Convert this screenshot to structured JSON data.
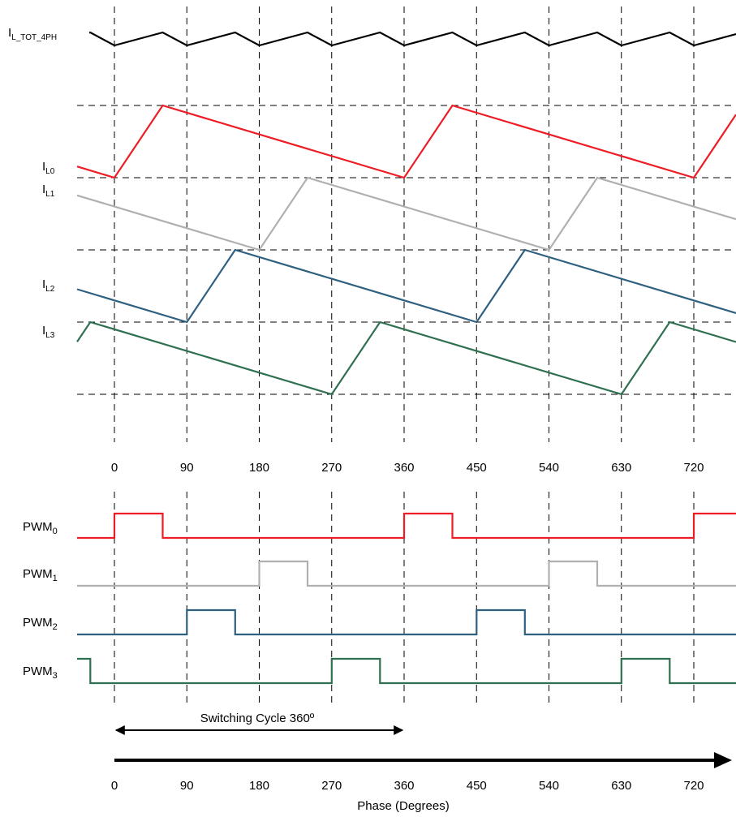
{
  "colors": {
    "total": "#000000",
    "phase0": "#ee1c25",
    "phase1": "#b0b0b0",
    "phase2": "#2f6080",
    "phase3": "#2e7050"
  },
  "signals": {
    "total": {
      "main": "I",
      "sub": "L_TOT_4PH"
    },
    "currents": [
      {
        "main": "I",
        "sub": "L0",
        "valley_phase": 0
      },
      {
        "main": "I",
        "sub": "L1",
        "valley_phase": 180
      },
      {
        "main": "I",
        "sub": "L2",
        "valley_phase": 90
      },
      {
        "main": "I",
        "sub": "L3",
        "valley_phase": 270
      }
    ],
    "pwm": [
      {
        "main": "PWM",
        "sub": "0",
        "on_phase": 0
      },
      {
        "main": "PWM",
        "sub": "1",
        "on_phase": 180
      },
      {
        "main": "PWM",
        "sub": "2",
        "on_phase": 90
      },
      {
        "main": "PWM",
        "sub": "3",
        "on_phase": 270
      }
    ]
  },
  "timing": {
    "period_deg": 360,
    "phase_shift_deg": 90,
    "on_time_deg": 60
  },
  "phase_ticks_top": [
    "0",
    "90",
    "180",
    "270",
    "360",
    "450",
    "540",
    "630",
    "720"
  ],
  "phase_ticks_bottom": [
    "0",
    "90",
    "180",
    "270",
    "360",
    "450",
    "540",
    "630",
    "720"
  ],
  "switching_cycle_label": "Switching Cycle 360º",
  "axis_label": "Phase (Degrees)"
}
